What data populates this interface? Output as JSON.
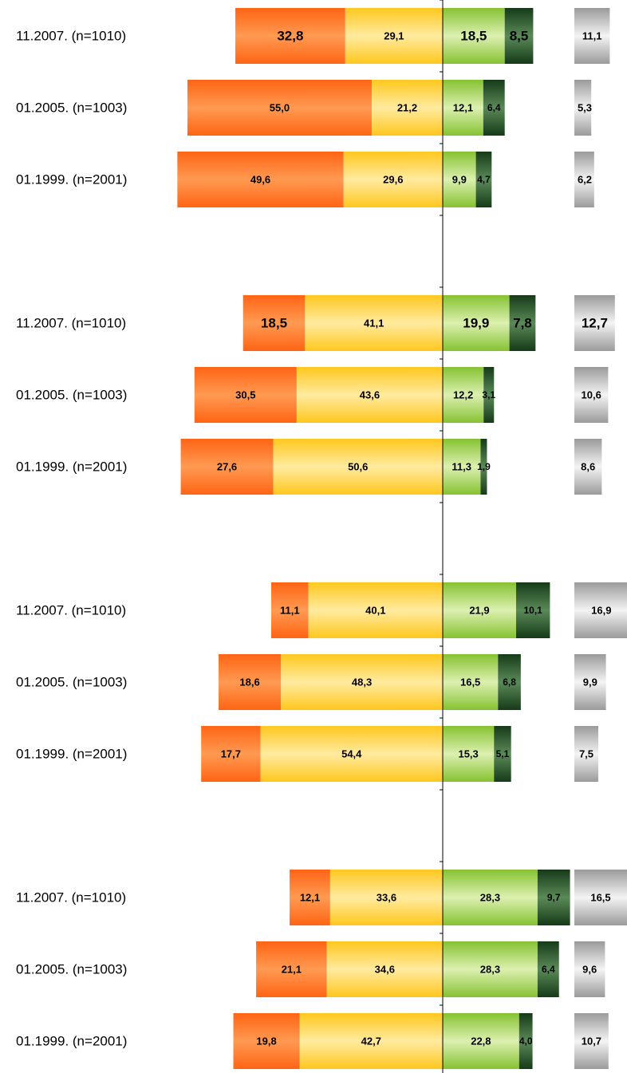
{
  "chart_data": {
    "type": "bar",
    "orientation": "horizontal-diverging-stacked",
    "title": "",
    "xlabel": "",
    "ylabel": "",
    "grid": false,
    "legend": "none",
    "segment_colors": {
      "s1": "#ff6a1a",
      "s2": "#ffd23a",
      "s3": "#8cc63e",
      "s4": "#1f4d22",
      "s5": "#9a9a9a"
    },
    "groups": [
      {
        "rows": [
          {
            "label": "11.2007. (n=1010)",
            "values": [
              32.8,
              29.1,
              18.5,
              8.5,
              11.1
            ],
            "text": [
              "32,8",
              "29,1",
              "18,5",
              "8,5",
              "11,1"
            ]
          },
          {
            "label": "01.2005. (n=1003)",
            "values": [
              55.0,
              21.2,
              12.1,
              6.4,
              5.3
            ],
            "text": [
              "55,0",
              "21,2",
              "12,1",
              "6,4",
              "5,3"
            ]
          },
          {
            "label": "01.1999. (n=2001)",
            "values": [
              49.6,
              29.6,
              9.9,
              4.7,
              6.2
            ],
            "text": [
              "49,6",
              "29,6",
              "9,9",
              "4,7",
              "6,2"
            ]
          }
        ]
      },
      {
        "rows": [
          {
            "label": "11.2007. (n=1010)",
            "values": [
              18.5,
              41.1,
              19.9,
              7.8,
              12.7
            ],
            "text": [
              "18,5",
              "41,1",
              "19,9",
              "7,8",
              "12,7"
            ]
          },
          {
            "label": "01.2005. (n=1003)",
            "values": [
              30.5,
              43.6,
              12.2,
              3.1,
              10.6
            ],
            "text": [
              "30,5",
              "43,6",
              "12,2",
              "3,1",
              "10,6"
            ]
          },
          {
            "label": "01.1999. (n=2001)",
            "values": [
              27.6,
              50.6,
              11.3,
              1.9,
              8.6
            ],
            "text": [
              "27,6",
              "50,6",
              "11,3",
              "1,9",
              "8,6"
            ]
          }
        ]
      },
      {
        "rows": [
          {
            "label": "11.2007. (n=1010)",
            "values": [
              11.1,
              40.1,
              21.9,
              10.1,
              16.9
            ],
            "text": [
              "11,1",
              "40,1",
              "21,9",
              "10,1",
              "16,9"
            ]
          },
          {
            "label": "01.2005. (n=1003)",
            "values": [
              18.6,
              48.3,
              16.5,
              6.8,
              9.9
            ],
            "text": [
              "18,6",
              "48,3",
              "16,5",
              "6,8",
              "9,9"
            ]
          },
          {
            "label": "01.1999. (n=2001)",
            "values": [
              17.7,
              54.4,
              15.3,
              5.1,
              7.5
            ],
            "text": [
              "17,7",
              "54,4",
              "15,3",
              "5,1",
              "7,5"
            ]
          }
        ]
      },
      {
        "rows": [
          {
            "label": "11.2007. (n=1010)",
            "values": [
              12.1,
              33.6,
              28.3,
              9.7,
              16.5
            ],
            "text": [
              "12,1",
              "33,6",
              "28,3",
              "9,7",
              "16,5"
            ]
          },
          {
            "label": "01.2005. (n=1003)",
            "values": [
              21.1,
              34.6,
              28.3,
              6.4,
              9.6
            ],
            "text": [
              "21,1",
              "34,6",
              "28,3",
              "6,4",
              "9,6"
            ]
          },
          {
            "label": "01.1999. (n=2001)",
            "values": [
              19.8,
              42.7,
              22.8,
              4.0,
              10.7
            ],
            "text": [
              "19,8",
              "42,7",
              "22,8",
              "4,0",
              "10,7"
            ]
          }
        ]
      }
    ]
  }
}
